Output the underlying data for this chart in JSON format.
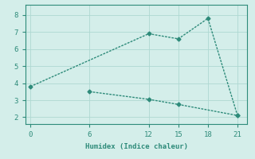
{
  "line1_x": [
    0,
    12,
    15,
    18,
    21
  ],
  "line1_y": [
    3.8,
    6.9,
    6.6,
    7.8,
    2.1
  ],
  "line2_x": [
    6,
    12,
    15,
    21
  ],
  "line2_y": [
    3.5,
    3.05,
    2.75,
    2.1
  ],
  "line_color": "#2e8b7a",
  "bg_color": "#d4eeea",
  "xlabel": "Humidex (Indice chaleur)",
  "xticks": [
    0,
    6,
    12,
    15,
    18,
    21
  ],
  "yticks": [
    2,
    3,
    4,
    5,
    6,
    7,
    8
  ],
  "ylim": [
    1.6,
    8.6
  ],
  "xlim": [
    -0.5,
    22
  ],
  "grid_color": "#aed8d2",
  "marker": "D",
  "markersize": 2.5,
  "linewidth": 1.0
}
